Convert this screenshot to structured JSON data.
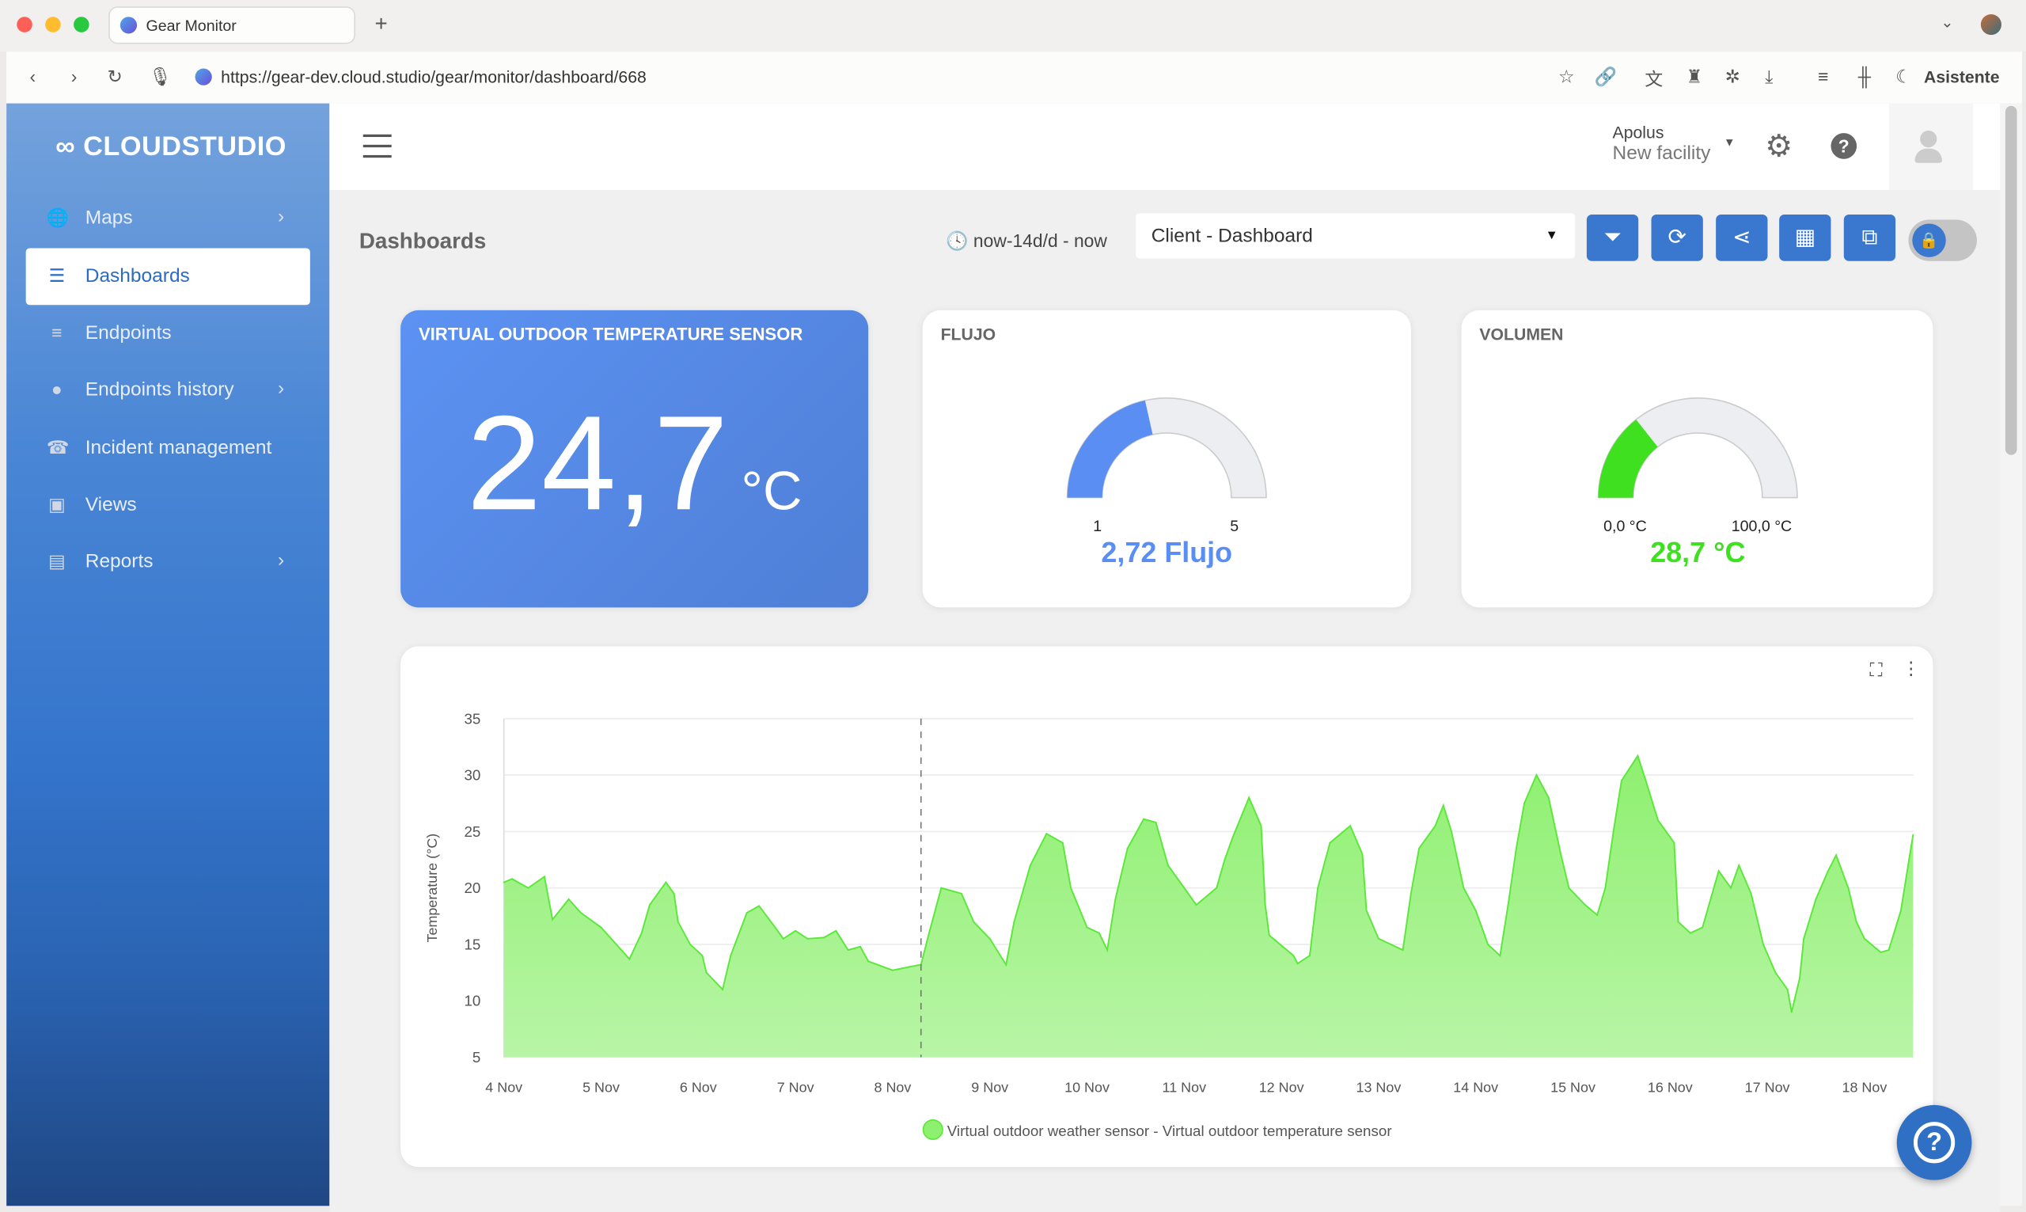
{
  "browser": {
    "tab_title": "Gear Monitor",
    "url": "https://gear-dev.cloud.studio/gear/monitor/dashboard/668",
    "assistant_label": "Asistente"
  },
  "sidebar": {
    "logo": "CLOUDSTUDIO",
    "items": [
      {
        "label": "Maps",
        "icon": "globe-icon",
        "has_submenu": true
      },
      {
        "label": "Dashboards",
        "icon": "chart-icon",
        "active": true
      },
      {
        "label": "Endpoints",
        "icon": "list-icon"
      },
      {
        "label": "Endpoints history",
        "icon": "clock-icon",
        "has_submenu": true
      },
      {
        "label": "Incident management",
        "icon": "phone-icon"
      },
      {
        "label": "Views",
        "icon": "image-icon"
      },
      {
        "label": "Reports",
        "icon": "file-icon",
        "has_submenu": true
      }
    ]
  },
  "header": {
    "org": "Apolus",
    "facility": "New facility"
  },
  "toolbar": {
    "page_title": "Dashboards",
    "time_range": "now-14d/d - now",
    "dashboard_select": "Client - Dashboard",
    "buttons": [
      "filter-icon",
      "refresh-icon",
      "share-icon",
      "add-widget-icon",
      "external-link-icon"
    ],
    "lock_toggle": true
  },
  "widgets": {
    "temperature": {
      "title": "VIRTUAL OUTDOOR TEMPERATURE SENSOR",
      "value": "24,7",
      "unit": "°C",
      "color_from": "#5c92f3",
      "color_to": "#4f7fd6"
    },
    "flujo": {
      "title": "FLUJO",
      "min": "1",
      "max": "5",
      "value": 2.72,
      "value_label": "2,72 Flujo",
      "color": "#5b8ef2"
    },
    "volumen": {
      "title": "VOLUMEN",
      "min": "0,0 °C",
      "max": "100,0 °C",
      "value": 28.7,
      "value_label": "28,7 °C",
      "color": "#3ee01f"
    }
  },
  "chart_data": {
    "type": "area",
    "ylabel": "Temperature (°C)",
    "ylim": [
      5,
      35
    ],
    "yticks": [
      "5",
      "10",
      "15",
      "20",
      "25",
      "30",
      "35"
    ],
    "xrange": [
      "11-04 00:00",
      "11-18 12:00"
    ],
    "xticks": [
      "4 Nov",
      "5 Nov",
      "6 Nov",
      "7 Nov",
      "8 Nov",
      "9 Nov",
      "10 Nov",
      "11 Nov",
      "12 Nov",
      "13 Nov",
      "14 Nov",
      "15 Nov",
      "16 Nov",
      "17 Nov",
      "18 Nov"
    ],
    "marker_x": "11-08 07:00",
    "grid": true,
    "legend_position": "bottom",
    "series": [
      {
        "name": "Virtual outdoor weather sensor - Virtual outdoor temperature sensor",
        "color": "#5be83a",
        "points": [
          [
            "11-04 00:00",
            20.5
          ],
          [
            "11-04 02:00",
            20.8
          ],
          [
            "11-04 06:00",
            20.0
          ],
          [
            "11-04 10:00",
            21.0
          ],
          [
            "11-04 12:00",
            17.2
          ],
          [
            "11-04 16:00",
            19.0
          ],
          [
            "11-04 19:00",
            17.8
          ],
          [
            "11-05 00:00",
            16.5
          ],
          [
            "11-05 03:00",
            15.3
          ],
          [
            "11-05 07:00",
            13.7
          ],
          [
            "11-05 10:00",
            16.0
          ],
          [
            "11-05 12:00",
            18.5
          ],
          [
            "11-05 16:00",
            20.5
          ],
          [
            "11-05 18:00",
            19.5
          ],
          [
            "11-05 19:00",
            17.0
          ],
          [
            "11-05 22:00",
            15.0
          ],
          [
            "11-06 01:00",
            14.0
          ],
          [
            "11-06 02:00",
            12.5
          ],
          [
            "11-06 06:00",
            11.0
          ],
          [
            "11-06 08:00",
            14.0
          ],
          [
            "11-06 12:00",
            17.8
          ],
          [
            "11-06 15:00",
            18.4
          ],
          [
            "11-06 19:00",
            16.5
          ],
          [
            "11-06 21:00",
            15.5
          ],
          [
            "11-07 00:00",
            16.2
          ],
          [
            "11-07 03:00",
            15.5
          ],
          [
            "11-07 07:00",
            15.6
          ],
          [
            "11-07 10:00",
            16.2
          ],
          [
            "11-07 13:00",
            14.5
          ],
          [
            "11-07 16:00",
            14.8
          ],
          [
            "11-07 18:00",
            13.5
          ],
          [
            "11-08 00:00",
            12.7
          ],
          [
            "11-08 04:00",
            13.0
          ],
          [
            "11-08 07:00",
            13.2
          ],
          [
            "11-08 09:00",
            16.0
          ],
          [
            "11-08 12:00",
            20.0
          ],
          [
            "11-08 17:00",
            19.5
          ],
          [
            "11-08 20:00",
            17.0
          ],
          [
            "11-09 00:00",
            15.5
          ],
          [
            "11-09 04:00",
            13.2
          ],
          [
            "11-09 06:00",
            17.0
          ],
          [
            "11-09 10:00",
            22.0
          ],
          [
            "11-09 14:00",
            24.8
          ],
          [
            "11-09 18:00",
            24.0
          ],
          [
            "11-09 20:00",
            20.0
          ],
          [
            "11-10 00:00",
            16.5
          ],
          [
            "11-10 03:00",
            16.0
          ],
          [
            "11-10 05:00",
            14.5
          ],
          [
            "11-10 07:00",
            19.0
          ],
          [
            "11-10 10:00",
            23.5
          ],
          [
            "11-10 14:00",
            26.1
          ],
          [
            "11-10 17:00",
            25.8
          ],
          [
            "11-10 20:00",
            22.0
          ],
          [
            "11-10 23:00",
            20.5
          ],
          [
            "11-11 03:00",
            18.5
          ],
          [
            "11-11 08:00",
            20.0
          ],
          [
            "11-11 10:00",
            22.5
          ],
          [
            "11-11 12:00",
            24.5
          ],
          [
            "11-11 16:00",
            28.0
          ],
          [
            "11-11 19:00",
            25.5
          ],
          [
            "11-11 20:00",
            18.5
          ],
          [
            "11-11 21:00",
            15.8
          ],
          [
            "11-12 03:00",
            14.0
          ],
          [
            "11-12 04:00",
            13.3
          ],
          [
            "11-12 07:00",
            14.0
          ],
          [
            "11-12 09:00",
            20.0
          ],
          [
            "11-12 12:00",
            24.0
          ],
          [
            "11-12 17:00",
            25.5
          ],
          [
            "11-12 20:00",
            23.0
          ],
          [
            "11-12 21:00",
            18.0
          ],
          [
            "11-13 00:00",
            15.5
          ],
          [
            "11-13 03:00",
            15.0
          ],
          [
            "11-13 06:00",
            14.5
          ],
          [
            "11-13 08:00",
            19.5
          ],
          [
            "11-13 10:00",
            23.5
          ],
          [
            "11-13 14:00",
            25.5
          ],
          [
            "11-13 16:00",
            27.3
          ],
          [
            "11-13 18:00",
            25.0
          ],
          [
            "11-13 21:00",
            20.0
          ],
          [
            "11-14 00:00",
            18.0
          ],
          [
            "11-14 03:00",
            15.0
          ],
          [
            "11-14 06:00",
            14.0
          ],
          [
            "11-14 08:00",
            18.5
          ],
          [
            "11-14 10:00",
            23.5
          ],
          [
            "11-14 12:00",
            27.5
          ],
          [
            "11-14 15:00",
            30.0
          ],
          [
            "11-14 18:00",
            28.0
          ],
          [
            "11-14 21:00",
            23.0
          ],
          [
            "11-14 23:00",
            20.0
          ],
          [
            "11-15 03:00",
            18.5
          ],
          [
            "11-15 06:00",
            17.6
          ],
          [
            "11-15 08:00",
            20.0
          ],
          [
            "11-15 10:00",
            25.0
          ],
          [
            "11-15 12:00",
            29.5
          ],
          [
            "11-15 16:00",
            31.7
          ],
          [
            "11-15 18:00",
            29.5
          ],
          [
            "11-15 21:00",
            26.0
          ],
          [
            "11-16 01:00",
            24.0
          ],
          [
            "11-16 02:00",
            17.0
          ],
          [
            "11-16 05:00",
            16.0
          ],
          [
            "11-16 08:00",
            16.5
          ],
          [
            "11-16 10:00",
            19.0
          ],
          [
            "11-16 12:00",
            21.5
          ],
          [
            "11-16 15:00",
            20.0
          ],
          [
            "11-16 17:00",
            22.0
          ],
          [
            "11-16 20:00",
            19.5
          ],
          [
            "11-16 23:00",
            15.0
          ],
          [
            "11-17 02:00",
            12.5
          ],
          [
            "11-17 05:00",
            11.0
          ],
          [
            "11-17 06:00",
            9.0
          ],
          [
            "11-17 08:00",
            12.0
          ],
          [
            "11-17 09:00",
            15.5
          ],
          [
            "11-17 12:00",
            19.0
          ],
          [
            "11-17 15:00",
            21.5
          ],
          [
            "11-17 17:00",
            22.9
          ],
          [
            "11-17 20:00",
            20.0
          ],
          [
            "11-17 22:00",
            17.0
          ],
          [
            "11-18 00:00",
            15.5
          ],
          [
            "11-18 04:00",
            14.3
          ],
          [
            "11-18 06:00",
            14.5
          ],
          [
            "11-18 09:00",
            18.0
          ],
          [
            "11-18 11:00",
            22.5
          ],
          [
            "11-18 12:00",
            24.7
          ]
        ]
      }
    ]
  }
}
